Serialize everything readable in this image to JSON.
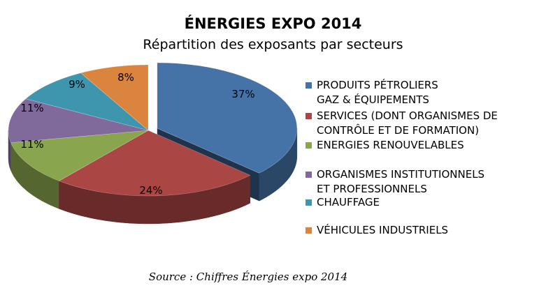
{
  "chart_data": {
    "type": "pie",
    "title": "ÉNERGIES EXPO 2014",
    "subtitle": "Répartition des exposants par secteurs",
    "source": "Source : Chiffres Énergies expo 2014",
    "legend_position": "right",
    "slices": [
      {
        "name": "PRODUITS PÉTROLIERS\nGAZ & ÉQUIPEMENTS",
        "value": 37,
        "label": "37%",
        "color": "#4572A7"
      },
      {
        "name": "SERVICES (DONT ORGANISMES DE\nCONTRÔLE ET DE FORMATION)",
        "value": 24,
        "label": "24%",
        "color": "#AA4643"
      },
      {
        "name": "ENERGIES RENOUVELABLES",
        "value": 11,
        "label": "11%",
        "color": "#89A54E"
      },
      {
        "name": "ORGANISMES INSTITUTIONNELS\nET PROFESSIONNELS",
        "value": 11,
        "label": "11%",
        "color": "#80699B"
      },
      {
        "name": "CHAUFFAGE",
        "value": 9,
        "label": "9%",
        "color": "#3D96AE"
      },
      {
        "name": "VÉHICULES INDUSTRIELS",
        "value": 8,
        "label": "8%",
        "color": "#DB843D"
      }
    ]
  }
}
